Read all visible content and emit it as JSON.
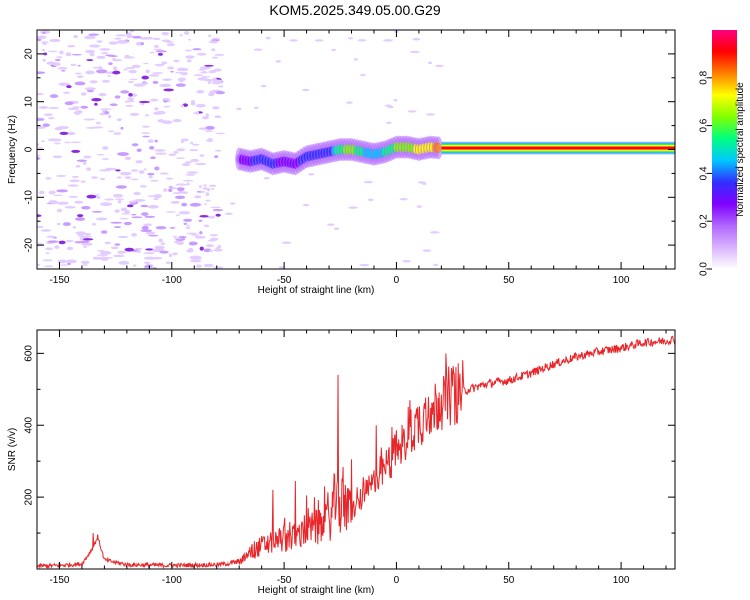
{
  "title": "KOM5.2025.349.05.00.G29",
  "colors": {
    "snr_line": "#e8262a",
    "background": "#ffffff",
    "axis": "#000000",
    "colorscale": [
      "#ffffff",
      "#d9b3ff",
      "#b066ff",
      "#8000ff",
      "#3030ff",
      "#00c8ff",
      "#00ff80",
      "#80ff00",
      "#ffff00",
      "#ff8000",
      "#ff0000",
      "#ff0080"
    ]
  },
  "chart_data": [
    {
      "type": "heatmap",
      "name": "spectrogram",
      "xlabel": "Height of straight line (km)",
      "ylabel": "Frequency (Hz)",
      "xlim": [
        -160,
        124
      ],
      "ylim": [
        -25,
        25
      ],
      "xticks": [
        -150,
        -100,
        -50,
        0,
        50,
        100
      ],
      "yticks": [
        -20,
        -10,
        0,
        10,
        20
      ],
      "colorbar": {
        "label": "Normalized spectral amplitude",
        "range": [
          0.0,
          1.0
        ],
        "ticks": [
          "0.0",
          "0.2",
          "0.4",
          "0.6",
          "0.8"
        ]
      },
      "signal_track": [
        {
          "x": -70,
          "freq": -2.0,
          "amp": 0.25
        },
        {
          "x": -65,
          "freq": -2.5,
          "amp": 0.35
        },
        {
          "x": -60,
          "freq": -2.0,
          "amp": 0.45
        },
        {
          "x": -55,
          "freq": -3.0,
          "amp": 0.4
        },
        {
          "x": -50,
          "freq": -2.5,
          "amp": 0.3
        },
        {
          "x": -45,
          "freq": -3.0,
          "amp": 0.35
        },
        {
          "x": -40,
          "freq": -1.5,
          "amp": 0.4
        },
        {
          "x": -35,
          "freq": -1.0,
          "amp": 0.45
        },
        {
          "x": -30,
          "freq": -0.5,
          "amp": 0.4
        },
        {
          "x": -25,
          "freq": 0.0,
          "amp": 0.6
        },
        {
          "x": -20,
          "freq": 0.0,
          "amp": 0.7
        },
        {
          "x": -15,
          "freq": -0.5,
          "amp": 0.55
        },
        {
          "x": -10,
          "freq": -1.0,
          "amp": 0.5
        },
        {
          "x": -5,
          "freq": -0.5,
          "amp": 0.55
        },
        {
          "x": 0,
          "freq": 0.5,
          "amp": 0.65
        },
        {
          "x": 5,
          "freq": 0.5,
          "amp": 0.7
        },
        {
          "x": 10,
          "freq": 0.0,
          "amp": 0.75
        },
        {
          "x": 15,
          "freq": 0.5,
          "amp": 0.8
        },
        {
          "x": 20,
          "freq": 0.3,
          "amp": 0.85
        },
        {
          "x": 30,
          "freq": 0.3,
          "amp": 0.85
        },
        {
          "x": 50,
          "freq": 0.3,
          "amp": 0.9
        },
        {
          "x": 75,
          "freq": 0.3,
          "amp": 0.92
        },
        {
          "x": 100,
          "freq": 0.3,
          "amp": 0.95
        },
        {
          "x": 124,
          "freq": 0.3,
          "amp": 0.95
        }
      ]
    },
    {
      "type": "line",
      "name": "snr",
      "xlabel": "Height of straight line (km)",
      "ylabel": "SNR (v/v)",
      "xlim": [
        -160,
        124
      ],
      "ylim": [
        0,
        665
      ],
      "xticks": [
        -150,
        -100,
        -50,
        0,
        50,
        100
      ],
      "yticks": [
        200,
        400,
        600
      ],
      "x": [
        -160,
        -150,
        -140,
        -135,
        -133,
        -130,
        -120,
        -100,
        -80,
        -75,
        -70,
        -65,
        -60,
        -55,
        -50,
        -45,
        -40,
        -35,
        -30,
        -27,
        -25,
        -23,
        -20,
        -15,
        -10,
        -5,
        0,
        5,
        10,
        15,
        20,
        25,
        30,
        40,
        50,
        60,
        70,
        80,
        90,
        100,
        110,
        120,
        124
      ],
      "y": [
        8,
        10,
        14,
        60,
        90,
        25,
        12,
        10,
        12,
        15,
        20,
        45,
        65,
        75,
        85,
        90,
        110,
        115,
        130,
        200,
        540,
        170,
        160,
        200,
        240,
        280,
        330,
        370,
        410,
        440,
        470,
        485,
        495,
        515,
        525,
        545,
        570,
        590,
        605,
        615,
        630,
        635,
        640
      ],
      "spikes": [
        {
          "x": -26,
          "y": 540
        },
        {
          "x": -9,
          "y": 400
        },
        {
          "x": 6,
          "y": 470
        },
        {
          "x": -55,
          "y": 220
        },
        {
          "x": -45,
          "y": 245
        },
        {
          "x": -40,
          "y": 205
        },
        {
          "x": -32,
          "y": 230
        },
        {
          "x": -20,
          "y": 305
        },
        {
          "x": -2,
          "y": 395
        },
        {
          "x": -135,
          "y": 100
        }
      ]
    }
  ]
}
